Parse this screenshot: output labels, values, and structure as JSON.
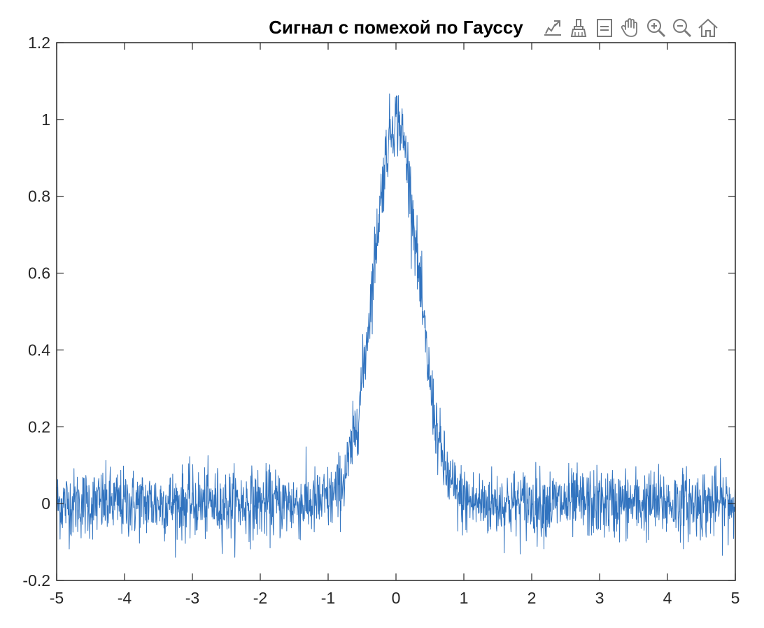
{
  "chart_data": {
    "type": "line",
    "title": "Сигнал с помехой по Гауссу",
    "xlabel": "",
    "ylabel": "",
    "xlim": [
      -5,
      5
    ],
    "ylim": [
      -0.2,
      1.2
    ],
    "xticks": [
      "-5",
      "-4",
      "-3",
      "-2",
      "-1",
      "0",
      "1",
      "2",
      "3",
      "4",
      "5"
    ],
    "yticks": [
      "-0.2",
      "0",
      "0.2",
      "0.4",
      "0.6",
      "0.8",
      "1",
      "1.2"
    ],
    "grid": false,
    "series": [
      {
        "name": "",
        "color": "#3173bf",
        "model": "gaussian signal with additive noise",
        "x_start": -5,
        "x_end": 5,
        "x_step": 0.005,
        "peak_center": 0,
        "peak_amplitude": 1,
        "peak_sigma": 0.33,
        "noise_std": 0.045,
        "approx_peak_observed": 1.11,
        "approx_min_observed": -0.14
      }
    ]
  },
  "toolbar": {
    "icons": [
      "export-icon",
      "brush-icon",
      "datatip-icon",
      "pan-icon",
      "zoom-in-icon",
      "zoom-out-icon",
      "home-icon"
    ]
  },
  "colors": {
    "line": "#3173bf",
    "axis": "#262626",
    "background": "#ffffff"
  }
}
